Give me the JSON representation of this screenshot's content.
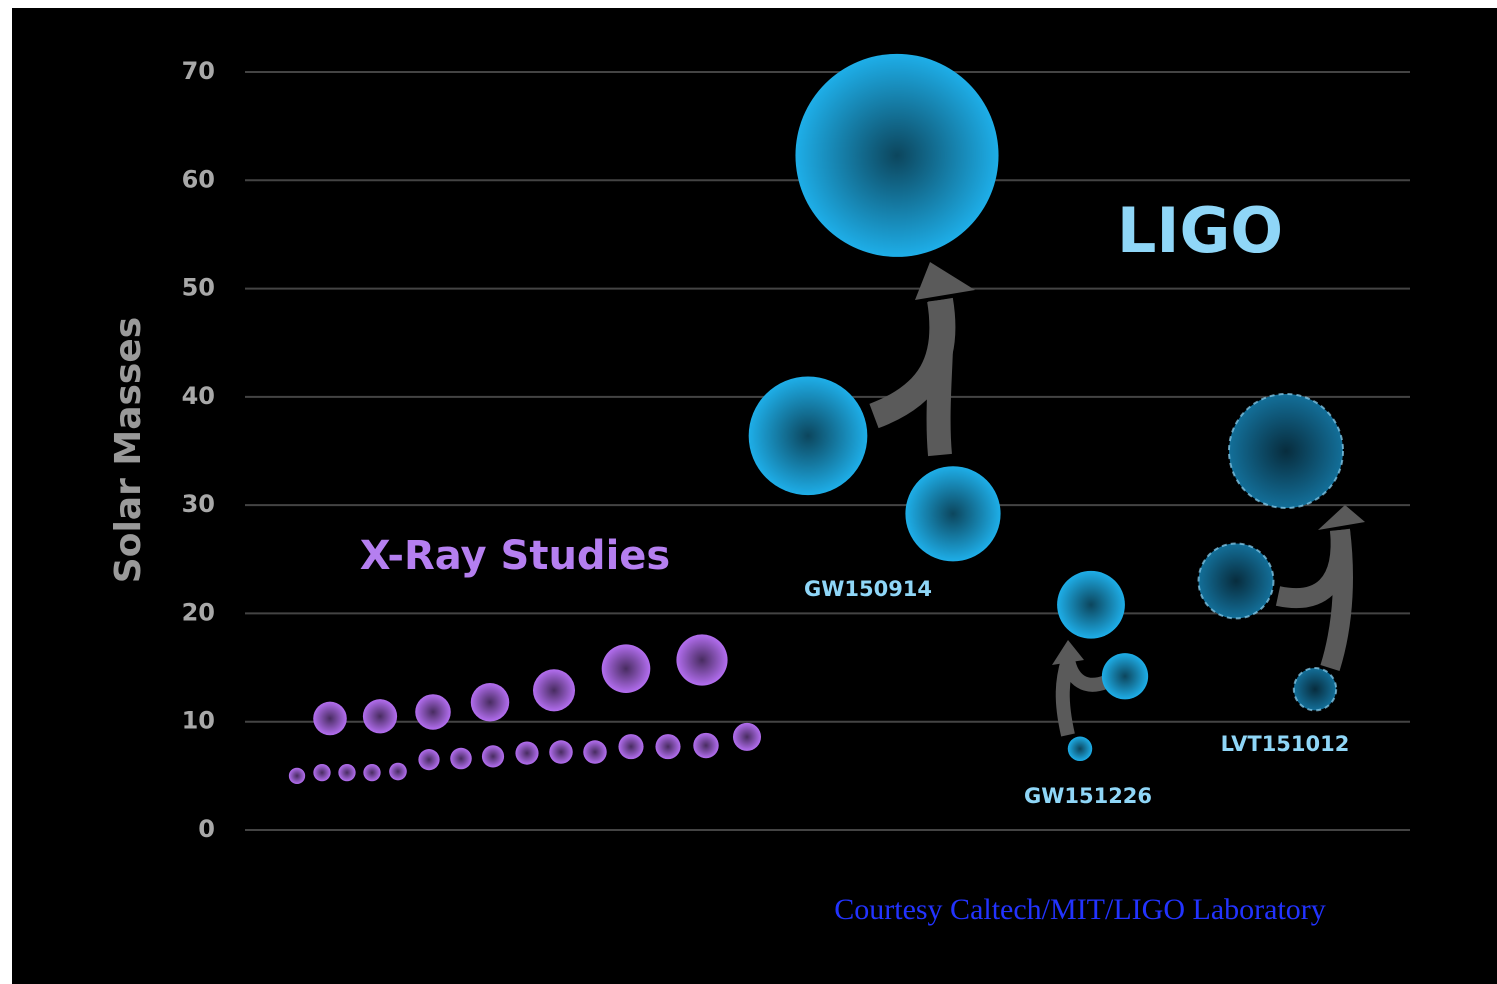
{
  "chart_data": {
    "type": "bubble",
    "ylabel": "Solar Masses",
    "ylim": [
      0,
      70
    ],
    "yticks": [
      0,
      10,
      20,
      30,
      40,
      50,
      60,
      70
    ],
    "grid": true,
    "group_labels": [
      "X-Ray Studies",
      "LIGO"
    ],
    "credit": "Courtesy Caltech/MIT/LIGO Laboratory",
    "series": [
      {
        "name": "X-Ray Studies",
        "color": "#b36ef0",
        "style": "solid",
        "values": [
          10.3,
          10.5,
          10.9,
          11.8,
          12.9,
          14.9,
          15.7,
          5.0,
          5.3,
          5.3,
          5.3,
          5.4,
          6.5,
          6.6,
          6.8,
          7.1,
          7.2,
          7.2,
          7.7,
          7.7,
          7.8,
          8.6
        ]
      },
      {
        "name": "GW150914",
        "color": "#1eaee8",
        "style": "solid",
        "values": [
          36.4,
          29.2,
          62.3
        ]
      },
      {
        "name": "GW151226",
        "color": "#1eaee8",
        "style": "solid",
        "values": [
          14.2,
          7.5,
          20.8
        ]
      },
      {
        "name": "LVT151012",
        "color": "#136f99",
        "style": "dashed",
        "values": [
          23.0,
          13.0,
          35.0
        ]
      }
    ]
  }
}
